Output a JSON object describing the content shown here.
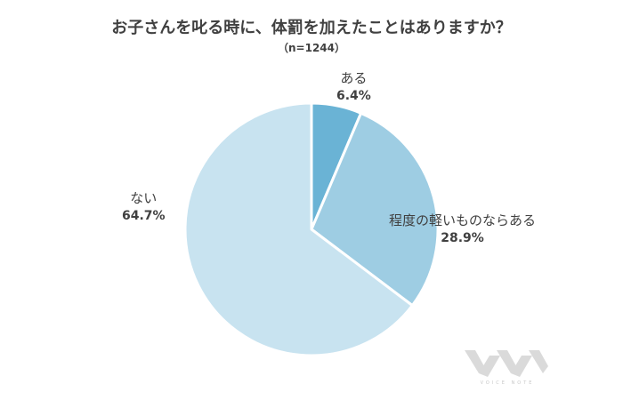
{
  "chart_data": {
    "type": "pie",
    "title": "お子さんを叱る時に、体罰を加えたことはありますか？",
    "subtitle": "（n=1244）",
    "start_angle_deg": 0,
    "direction": "clockwise",
    "slices": [
      {
        "label": "ある",
        "value": 6.4,
        "display": "6.4%",
        "color": "#6ab3d5"
      },
      {
        "label": "程度の軽いものならある",
        "value": 28.9,
        "display": "28.9%",
        "color": "#9ecde3"
      },
      {
        "label": "ない",
        "value": 64.7,
        "display": "64.7%",
        "color": "#c8e3f0"
      }
    ]
  },
  "branding": {
    "logo_text": "VOICE NOTE"
  }
}
